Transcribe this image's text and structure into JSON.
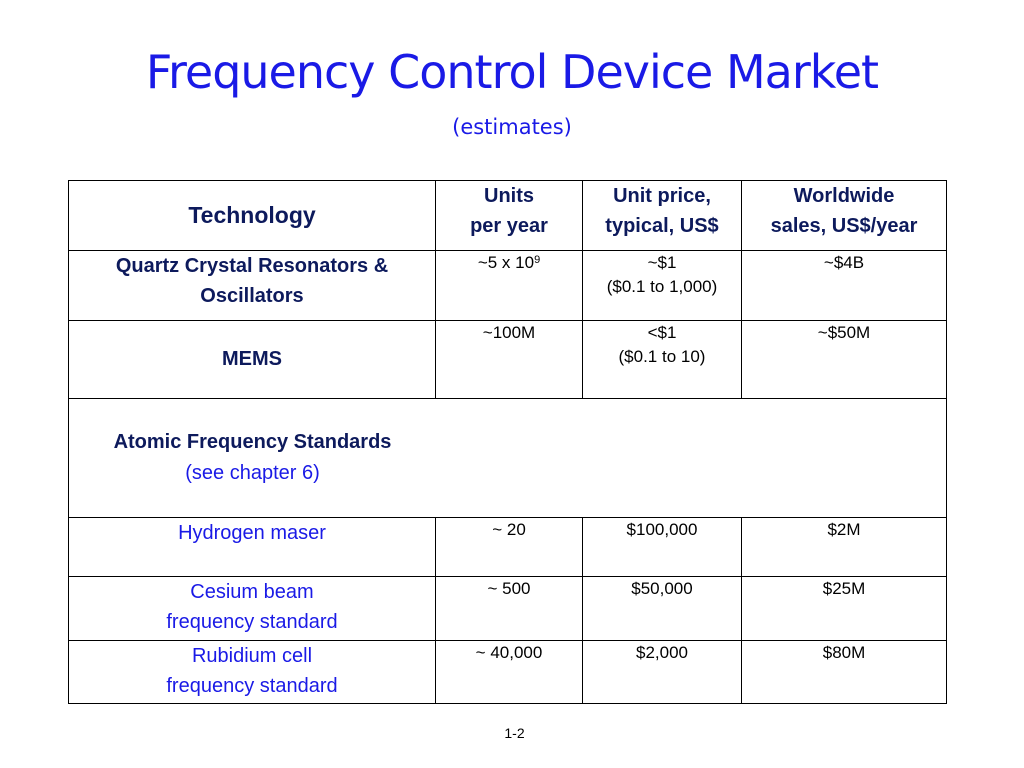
{
  "slide": {
    "title": "Frequency Control Device Market",
    "subtitle": "(estimates)",
    "page_number": "1-2"
  },
  "table": {
    "headers": {
      "technology": "Technology",
      "units_line1": "Units",
      "units_line2": "per year",
      "price_line1": "Unit price,",
      "price_line2": "typical, US$",
      "sales_line1": "Worldwide",
      "sales_line2": "sales, US$/year"
    },
    "quartz": {
      "name_line1": "Quartz Crystal Resonators &",
      "name_line2": "Oscillators",
      "units_base": "~5 x 10",
      "units_exp": "9",
      "price_line1": "~$1",
      "price_line2": "($0.1 to 1,000)",
      "sales": "~$4B"
    },
    "mems": {
      "name": "MEMS",
      "units": "~100M",
      "price_line1": "<$1",
      "price_line2": "($0.1 to 10)",
      "sales": "~$50M"
    },
    "atomic": {
      "title": "Atomic Frequency Standards",
      "subtitle": "(see chapter 6)"
    },
    "hydrogen": {
      "name": "Hydrogen maser",
      "units": "~ 20",
      "price": "$100,000",
      "sales": "$2M"
    },
    "cesium": {
      "name_line1": "Cesium beam",
      "name_line2": "frequency standard",
      "units": "~ 500",
      "price": "$50,000",
      "sales": "$25M"
    },
    "rubidium": {
      "name_line1": "Rubidium cell",
      "name_line2": "frequency standard",
      "units": "~ 40,000",
      "price": "$2,000",
      "sales": "$80M"
    }
  }
}
